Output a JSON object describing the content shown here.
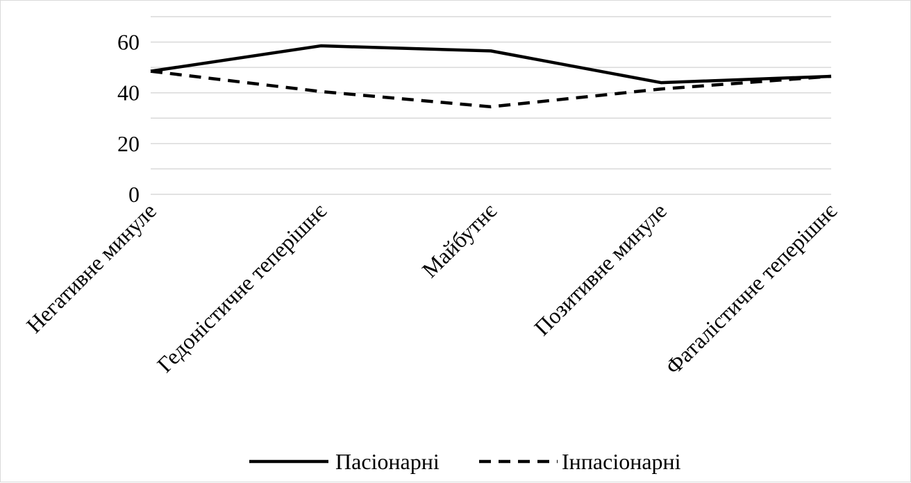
{
  "chart_data": {
    "type": "line",
    "title": "",
    "xlabel": "",
    "ylabel": "",
    "categories": [
      "Негативне минуле",
      "Гедоністичне теперішнє",
      "Майбутнє",
      "Позитивне минуле",
      "Фаталістичне теперішнє"
    ],
    "ylim": [
      0,
      70
    ],
    "yticks": [
      0,
      20,
      40,
      60
    ],
    "grid": true,
    "legend_position": "bottom",
    "series": [
      {
        "name": "Пасіонарні",
        "values": [
          48.5,
          58.5,
          56.5,
          44.0,
          46.5
        ],
        "color": "#000000",
        "line_style": "solid"
      },
      {
        "name": "Інпасіонарні",
        "values": [
          48.5,
          40.5,
          34.5,
          41.5,
          46.5
        ],
        "color": "#000000",
        "line_style": "dashed"
      }
    ]
  }
}
